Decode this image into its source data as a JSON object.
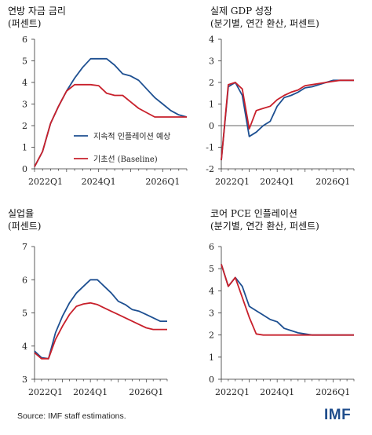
{
  "colors": {
    "blue": "#1d4f91",
    "red": "#c8202b",
    "axis": "#333333"
  },
  "footer": {
    "source": "Source: IMF staff estimations.",
    "logo": "IMF"
  },
  "legend": {
    "series_a": "지속적 인플레이션 예상",
    "series_b": "기초선 (Baseline)"
  },
  "chart_data": [
    {
      "type": "line",
      "title": "연방 자금 금리",
      "subtitle": "(퍼센트)",
      "ylim": [
        0,
        6
      ],
      "yticks": [
        0,
        1,
        2,
        3,
        4,
        5,
        6
      ],
      "xlim": [
        0,
        19
      ],
      "xticks": [
        {
          "pos": 0,
          "label": "2022Q1"
        },
        {
          "pos": 8,
          "label": "2024Q1"
        },
        {
          "pos": 16,
          "label": "2026Q1"
        }
      ],
      "series": [
        {
          "name": "지속적 인플레이션 예상",
          "color": "blue",
          "x": [
            0,
            1,
            2,
            3,
            4,
            5,
            6,
            7,
            8,
            9,
            10,
            11,
            12,
            13,
            14,
            15,
            16,
            17,
            18,
            19
          ],
          "y": [
            0.1,
            0.8,
            2.1,
            2.9,
            3.6,
            4.2,
            4.7,
            5.1,
            5.1,
            5.1,
            4.8,
            4.4,
            4.3,
            4.1,
            3.7,
            3.3,
            3.0,
            2.7,
            2.5,
            2.4
          ]
        },
        {
          "name": "기초선 (Baseline)",
          "color": "red",
          "x": [
            0,
            1,
            2,
            3,
            4,
            5,
            6,
            7,
            8,
            9,
            10,
            11,
            12,
            13,
            14,
            15,
            16,
            17,
            18,
            19
          ],
          "y": [
            0.1,
            0.8,
            2.1,
            2.9,
            3.6,
            3.9,
            3.9,
            3.9,
            3.85,
            3.5,
            3.4,
            3.4,
            3.1,
            2.8,
            2.6,
            2.4,
            2.4,
            2.4,
            2.4,
            2.4
          ]
        }
      ]
    },
    {
      "type": "line",
      "title": "실제 GDP 성장",
      "subtitle": "(분기별, 연간 환산, 퍼센트)",
      "ylim": [
        -2,
        4
      ],
      "yticks": [
        -2,
        -1,
        0,
        1,
        2,
        3,
        4
      ],
      "xlim": [
        0,
        19
      ],
      "xticks": [
        {
          "pos": 0,
          "label": "2022Q1"
        },
        {
          "pos": 8,
          "label": "2024Q1"
        },
        {
          "pos": 16,
          "label": "2026Q1"
        }
      ],
      "series": [
        {
          "name": "지속적 인플레이션 예상",
          "color": "blue",
          "x": [
            0,
            1,
            2,
            3,
            4,
            5,
            6,
            7,
            8,
            9,
            10,
            11,
            12,
            13,
            14,
            15,
            16,
            17,
            18,
            19
          ],
          "y": [
            -1.6,
            1.8,
            2.0,
            1.4,
            -0.5,
            -0.3,
            0.0,
            0.2,
            0.9,
            1.3,
            1.4,
            1.55,
            1.75,
            1.8,
            1.9,
            2.0,
            2.1,
            2.1,
            2.1,
            2.1
          ]
        },
        {
          "name": "기초선 (Baseline)",
          "color": "red",
          "x": [
            0,
            1,
            2,
            3,
            4,
            5,
            6,
            7,
            8,
            9,
            10,
            11,
            12,
            13,
            14,
            15,
            16,
            17,
            18,
            19
          ],
          "y": [
            -1.6,
            1.9,
            2.0,
            1.7,
            -0.15,
            0.7,
            0.8,
            0.9,
            1.2,
            1.4,
            1.55,
            1.65,
            1.85,
            1.9,
            1.95,
            2.0,
            2.05,
            2.1,
            2.1,
            2.1
          ]
        }
      ]
    },
    {
      "type": "line",
      "title": "실업율",
      "subtitle": "(퍼센트)",
      "ylim": [
        3,
        7
      ],
      "yticks": [
        3,
        4,
        5,
        6,
        7
      ],
      "xlim": [
        0,
        19
      ],
      "xticks": [
        {
          "pos": 0,
          "label": "2022Q1"
        },
        {
          "pos": 8,
          "label": "2024Q1"
        },
        {
          "pos": 16,
          "label": "2026Q1"
        }
      ],
      "series": [
        {
          "name": "지속적 인플레이션 예상",
          "color": "blue",
          "x": [
            0,
            1,
            2,
            3,
            4,
            5,
            6,
            7,
            8,
            9,
            10,
            11,
            12,
            13,
            14,
            15,
            16,
            17,
            18,
            19
          ],
          "y": [
            3.85,
            3.65,
            3.62,
            4.4,
            4.9,
            5.3,
            5.6,
            5.8,
            6.0,
            6.0,
            5.8,
            5.6,
            5.35,
            5.25,
            5.1,
            5.05,
            4.95,
            4.85,
            4.75,
            4.75
          ]
        },
        {
          "name": "기초선 (Baseline)",
          "color": "red",
          "x": [
            0,
            1,
            2,
            3,
            4,
            5,
            6,
            7,
            8,
            9,
            10,
            11,
            12,
            13,
            14,
            15,
            16,
            17,
            18,
            19
          ],
          "y": [
            3.8,
            3.62,
            3.62,
            4.2,
            4.6,
            4.95,
            5.2,
            5.27,
            5.3,
            5.25,
            5.15,
            5.05,
            4.95,
            4.85,
            4.75,
            4.65,
            4.55,
            4.5,
            4.5,
            4.5
          ]
        }
      ]
    },
    {
      "type": "line",
      "title": "코어 PCE 인플레이션",
      "subtitle": "(분기별, 연간 환산, 퍼센트)",
      "ylim": [
        0,
        6
      ],
      "yticks": [
        0,
        1,
        2,
        3,
        4,
        5,
        6
      ],
      "xlim": [
        0,
        19
      ],
      "xticks": [
        {
          "pos": 0,
          "label": "2022Q1"
        },
        {
          "pos": 8,
          "label": "2024Q1"
        },
        {
          "pos": 16,
          "label": "2026Q1"
        }
      ],
      "series": [
        {
          "name": "지속적 인플레이션 예상",
          "color": "blue",
          "x": [
            0,
            1,
            2,
            3,
            4,
            5,
            6,
            7,
            8,
            9,
            10,
            11,
            12,
            13,
            14,
            15,
            16,
            17,
            18,
            19
          ],
          "y": [
            5.2,
            4.2,
            4.6,
            4.2,
            3.3,
            3.1,
            2.9,
            2.7,
            2.6,
            2.3,
            2.2,
            2.1,
            2.05,
            2.0,
            2.0,
            2.0,
            2.0,
            2.0,
            2.0,
            2.0
          ]
        },
        {
          "name": "기초선 (Baseline)",
          "color": "red",
          "x": [
            0,
            1,
            2,
            3,
            4,
            5,
            6,
            7,
            8,
            9,
            10,
            11,
            12,
            13,
            14,
            15,
            16,
            17,
            18,
            19
          ],
          "y": [
            5.2,
            4.2,
            4.6,
            3.7,
            2.8,
            2.05,
            2.0,
            2.0,
            2.0,
            2.0,
            2.0,
            2.0,
            2.0,
            2.0,
            2.0,
            2.0,
            2.0,
            2.0,
            2.0,
            2.0
          ]
        }
      ]
    }
  ]
}
